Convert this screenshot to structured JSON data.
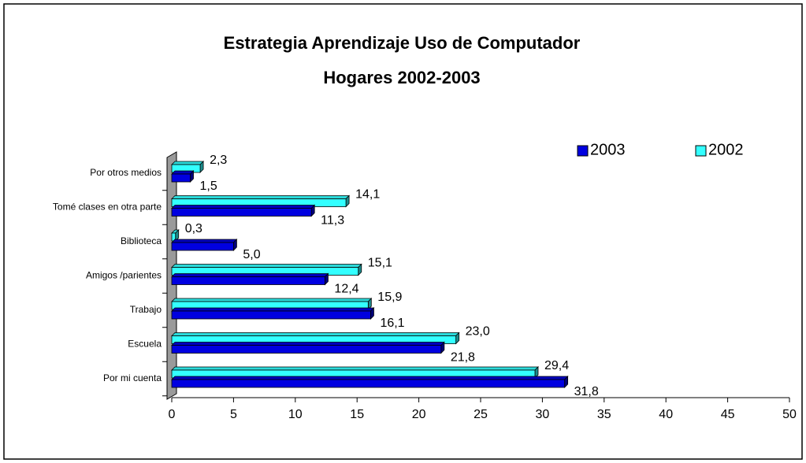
{
  "chart_data": {
    "type": "bar",
    "orientation": "horizontal",
    "title": "Estrategia Aprendizaje Uso de Computador",
    "subtitle": "Hogares 2002-2003",
    "categories": [
      "Por otros medios",
      "Tomé clases en otra parte",
      "Biblioteca",
      "Amigos /parientes",
      "Trabajo",
      "Escuela",
      "Por mi cuenta"
    ],
    "series": [
      {
        "name": "2003",
        "color": "#0000e0",
        "values": [
          1.5,
          11.3,
          5.0,
          12.4,
          16.1,
          21.8,
          31.8
        ],
        "value_labels": [
          "1,5",
          "11,3",
          "5,0",
          "12,4",
          "16,1",
          "21,8",
          "31,8"
        ]
      },
      {
        "name": "2002",
        "color": "#33ffff",
        "values": [
          2.3,
          14.1,
          0.3,
          15.1,
          15.9,
          23.0,
          29.4
        ],
        "value_labels": [
          "2,3",
          "14,1",
          "0,3",
          "15,1",
          "15,9",
          "23,0",
          "29,4"
        ]
      }
    ],
    "xlim": [
      0,
      50
    ],
    "xticks": [
      0,
      5,
      10,
      15,
      20,
      25,
      30,
      35,
      40,
      45,
      50
    ],
    "legend": "top-right"
  }
}
